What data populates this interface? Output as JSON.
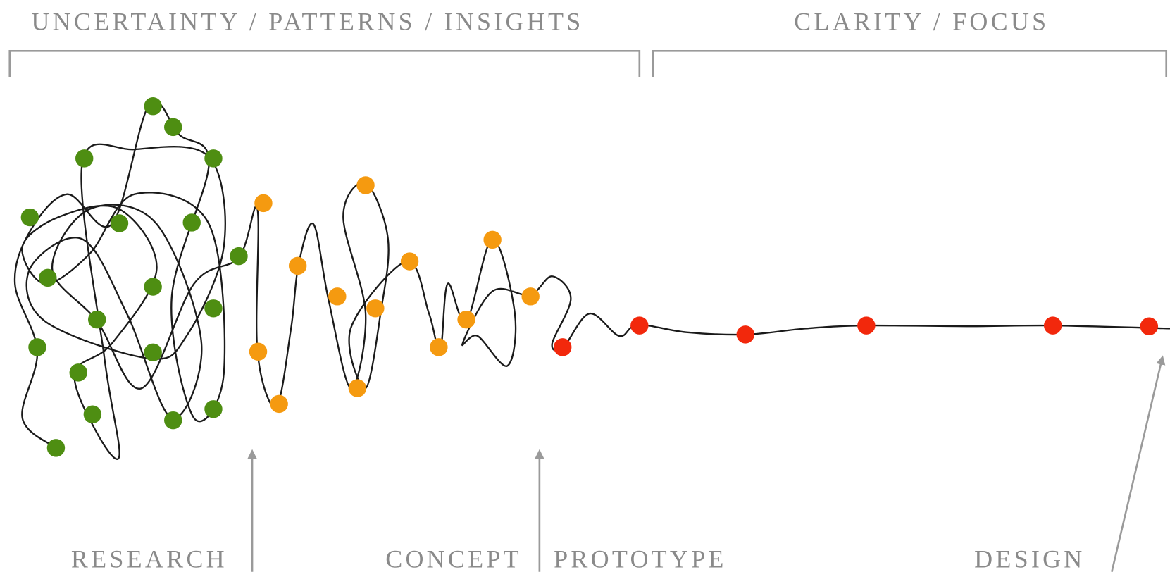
{
  "header": {
    "left": "UNCERTAINTY / PATTERNS / INSIGHTS",
    "right": "CLARITY / FOCUS"
  },
  "phases": [
    "RESEARCH",
    "CONCEPT",
    "PROTOTYPE",
    "DESIGN"
  ]
}
